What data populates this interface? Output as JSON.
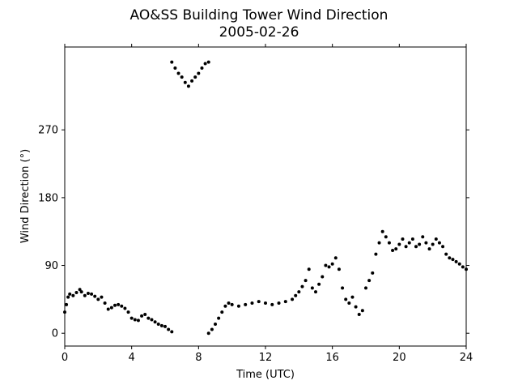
{
  "chart_data": {
    "type": "scatter",
    "title": "AO&SS Building Tower Wind Direction",
    "subtitle": "2005-02-26",
    "xlabel": "Time (UTC)",
    "ylabel": "Wind Direction (°)",
    "xlim": [
      0,
      24
    ],
    "ylim": [
      -17,
      380
    ],
    "xticks": [
      0,
      4,
      8,
      12,
      16,
      20,
      24
    ],
    "xtick_labels": [
      "0",
      "4",
      "8",
      "12",
      "16",
      "20",
      "24"
    ],
    "yticks": [
      0,
      90,
      180,
      270
    ],
    "ytick_labels": [
      "0",
      "90",
      "180",
      "270"
    ],
    "grid": false,
    "marker_color": "#000000",
    "series": [
      {
        "x": [
          0.0,
          0.1,
          0.2,
          0.3,
          0.5,
          0.7,
          0.9,
          1.0,
          1.2,
          1.4,
          1.6,
          1.8,
          2.0,
          2.2,
          2.4,
          2.6,
          2.8,
          3.0,
          3.2,
          3.4,
          3.6,
          3.8,
          4.0,
          4.2,
          4.4,
          4.6,
          4.8,
          5.0,
          5.2,
          5.4,
          5.6,
          5.8,
          6.0,
          6.2,
          6.4,
          6.4,
          6.6,
          6.8,
          7.0,
          7.2,
          7.4,
          7.6,
          7.8,
          8.0,
          8.2,
          8.4,
          8.6,
          8.6,
          8.8,
          9.0,
          9.2,
          9.4,
          9.6,
          9.8,
          10.0,
          10.4,
          10.8,
          11.2,
          11.6,
          12.0,
          12.4,
          12.8,
          13.2,
          13.6,
          13.8,
          14.0,
          14.2,
          14.4,
          14.6,
          14.8,
          15.0,
          15.2,
          15.4,
          15.6,
          15.8,
          16.0,
          16.2,
          16.4,
          16.6,
          16.8,
          17.0,
          17.2,
          17.4,
          17.6,
          17.8,
          18.0,
          18.2,
          18.4,
          18.6,
          18.8,
          19.0,
          19.2,
          19.4,
          19.6,
          19.8,
          20.0,
          20.2,
          20.4,
          20.6,
          20.8,
          21.0,
          21.2,
          21.4,
          21.6,
          21.8,
          22.0,
          22.2,
          22.4,
          22.6,
          22.8,
          23.0,
          23.2,
          23.4,
          23.6,
          23.8,
          24.0
        ],
        "y": [
          28,
          38,
          48,
          52,
          50,
          54,
          58,
          55,
          50,
          53,
          52,
          49,
          45,
          48,
          40,
          32,
          34,
          37,
          38,
          36,
          33,
          28,
          20,
          18,
          17,
          23,
          25,
          20,
          18,
          15,
          12,
          10,
          9,
          5,
          2,
          360,
          352,
          345,
          340,
          333,
          328,
          335,
          340,
          345,
          352,
          358,
          360,
          0,
          5,
          12,
          20,
          28,
          36,
          40,
          38,
          36,
          38,
          40,
          42,
          40,
          38,
          40,
          42,
          45,
          50,
          55,
          62,
          70,
          85,
          60,
          55,
          65,
          75,
          90,
          88,
          92,
          100,
          85,
          60,
          45,
          40,
          48,
          35,
          25,
          30,
          60,
          70,
          80,
          105,
          120,
          135,
          128,
          120,
          110,
          112,
          118,
          125,
          115,
          120,
          125,
          115,
          118,
          128,
          120,
          112,
          118,
          125,
          120,
          115,
          105,
          100,
          98,
          95,
          92,
          88,
          85
        ]
      }
    ]
  }
}
